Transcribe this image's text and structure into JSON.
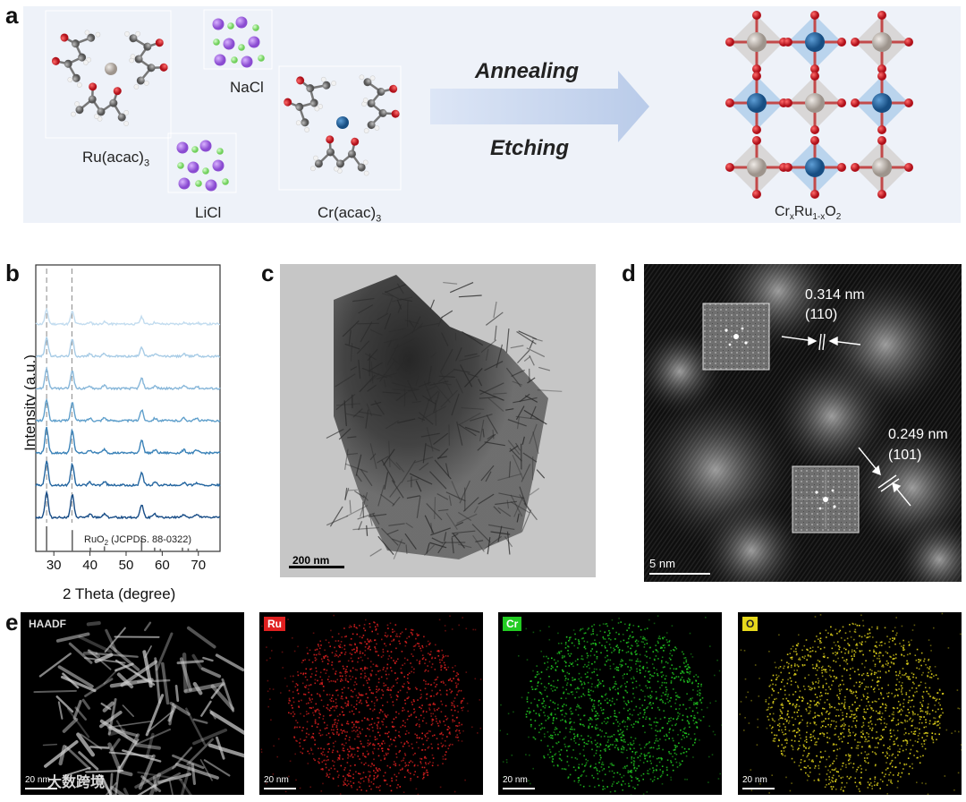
{
  "panels": {
    "a": {
      "letter": "a",
      "molecules": [
        "Ru(acac)",
        "NaCl",
        "LiCl",
        "Cr(acac)"
      ],
      "sub3": "3",
      "arrow_top": "Annealing",
      "arrow_bottom": "Etching",
      "product_prefix": "Cr",
      "product_sub_x": "x",
      "product_mid": "Ru",
      "product_sub_1x": "1-x",
      "product_o": "O",
      "product_sub_2": "2",
      "colors": {
        "bg": "#eef2f9",
        "ru": "#c9c1bb",
        "cr": "#2d6ca8",
        "o": "#d8202b",
        "arrow": "#c9d6ef"
      }
    },
    "b": {
      "letter": "b",
      "ylabel": "Intensity (a.u.)",
      "xlabel": "2 Theta (degree)",
      "ref_label_pre": "RuO",
      "ref_label_sub": "2",
      "ref_label_post": " (JCPDS. 88-0322)"
    },
    "c": {
      "letter": "c",
      "scalebar": "200 nm"
    },
    "d": {
      "letter": "d",
      "scalebar": "5 nm",
      "spacing1": "0.314 nm",
      "plane1": "(110)",
      "spacing2": "0.249 nm",
      "plane2": "(101)"
    },
    "e": {
      "letter": "e",
      "maps": [
        {
          "label": "HAADF",
          "scalebar": "20 nm",
          "color": "#dddddd"
        },
        {
          "label": "Ru",
          "scalebar": "20 nm",
          "color": "#e02020"
        },
        {
          "label": "Cr",
          "scalebar": "20 nm",
          "color": "#22cc22"
        },
        {
          "label": "O",
          "scalebar": "20 nm",
          "color": "#e6d81c"
        }
      ],
      "watermark": "大数跨境"
    }
  },
  "chart_data": {
    "type": "line",
    "title": "",
    "xlabel": "2 Theta (degree)",
    "ylabel": "Intensity (a.u.)",
    "xlim": [
      25,
      76
    ],
    "xticks": [
      30,
      40,
      50,
      60,
      70
    ],
    "yticks": [],
    "reference_lines_x": [
      28,
      35
    ],
    "reference_peaks": [
      {
        "x": 28.0,
        "h": 1.0
      },
      {
        "x": 35.1,
        "h": 0.85
      },
      {
        "x": 40.1,
        "h": 0.15
      },
      {
        "x": 44.0,
        "h": 0.2
      },
      {
        "x": 54.3,
        "h": 0.55
      },
      {
        "x": 57.9,
        "h": 0.15
      },
      {
        "x": 59.5,
        "h": 0.1
      },
      {
        "x": 65.6,
        "h": 0.15
      },
      {
        "x": 67.2,
        "h": 0.12
      },
      {
        "x": 69.6,
        "h": 0.1
      }
    ],
    "peaks": [
      [
        28.0,
        1.0
      ],
      [
        35.1,
        0.9
      ],
      [
        40.0,
        0.12
      ],
      [
        44.0,
        0.15
      ],
      [
        54.3,
        0.5
      ],
      [
        58.0,
        0.12
      ],
      [
        66.0,
        0.12
      ],
      [
        69.5,
        0.1
      ]
    ],
    "series": [
      {
        "color": "#c2dcef",
        "scale": 0.55
      },
      {
        "color": "#a8cce6",
        "scale": 0.75
      },
      {
        "color": "#86b6d9",
        "scale": 0.8
      },
      {
        "color": "#5f9fcb",
        "scale": 0.85
      },
      {
        "color": "#3a82b8",
        "scale": 1.0
      },
      {
        "color": "#2466a0",
        "scale": 0.95
      },
      {
        "color": "#174c86",
        "scale": 1.0
      }
    ]
  }
}
